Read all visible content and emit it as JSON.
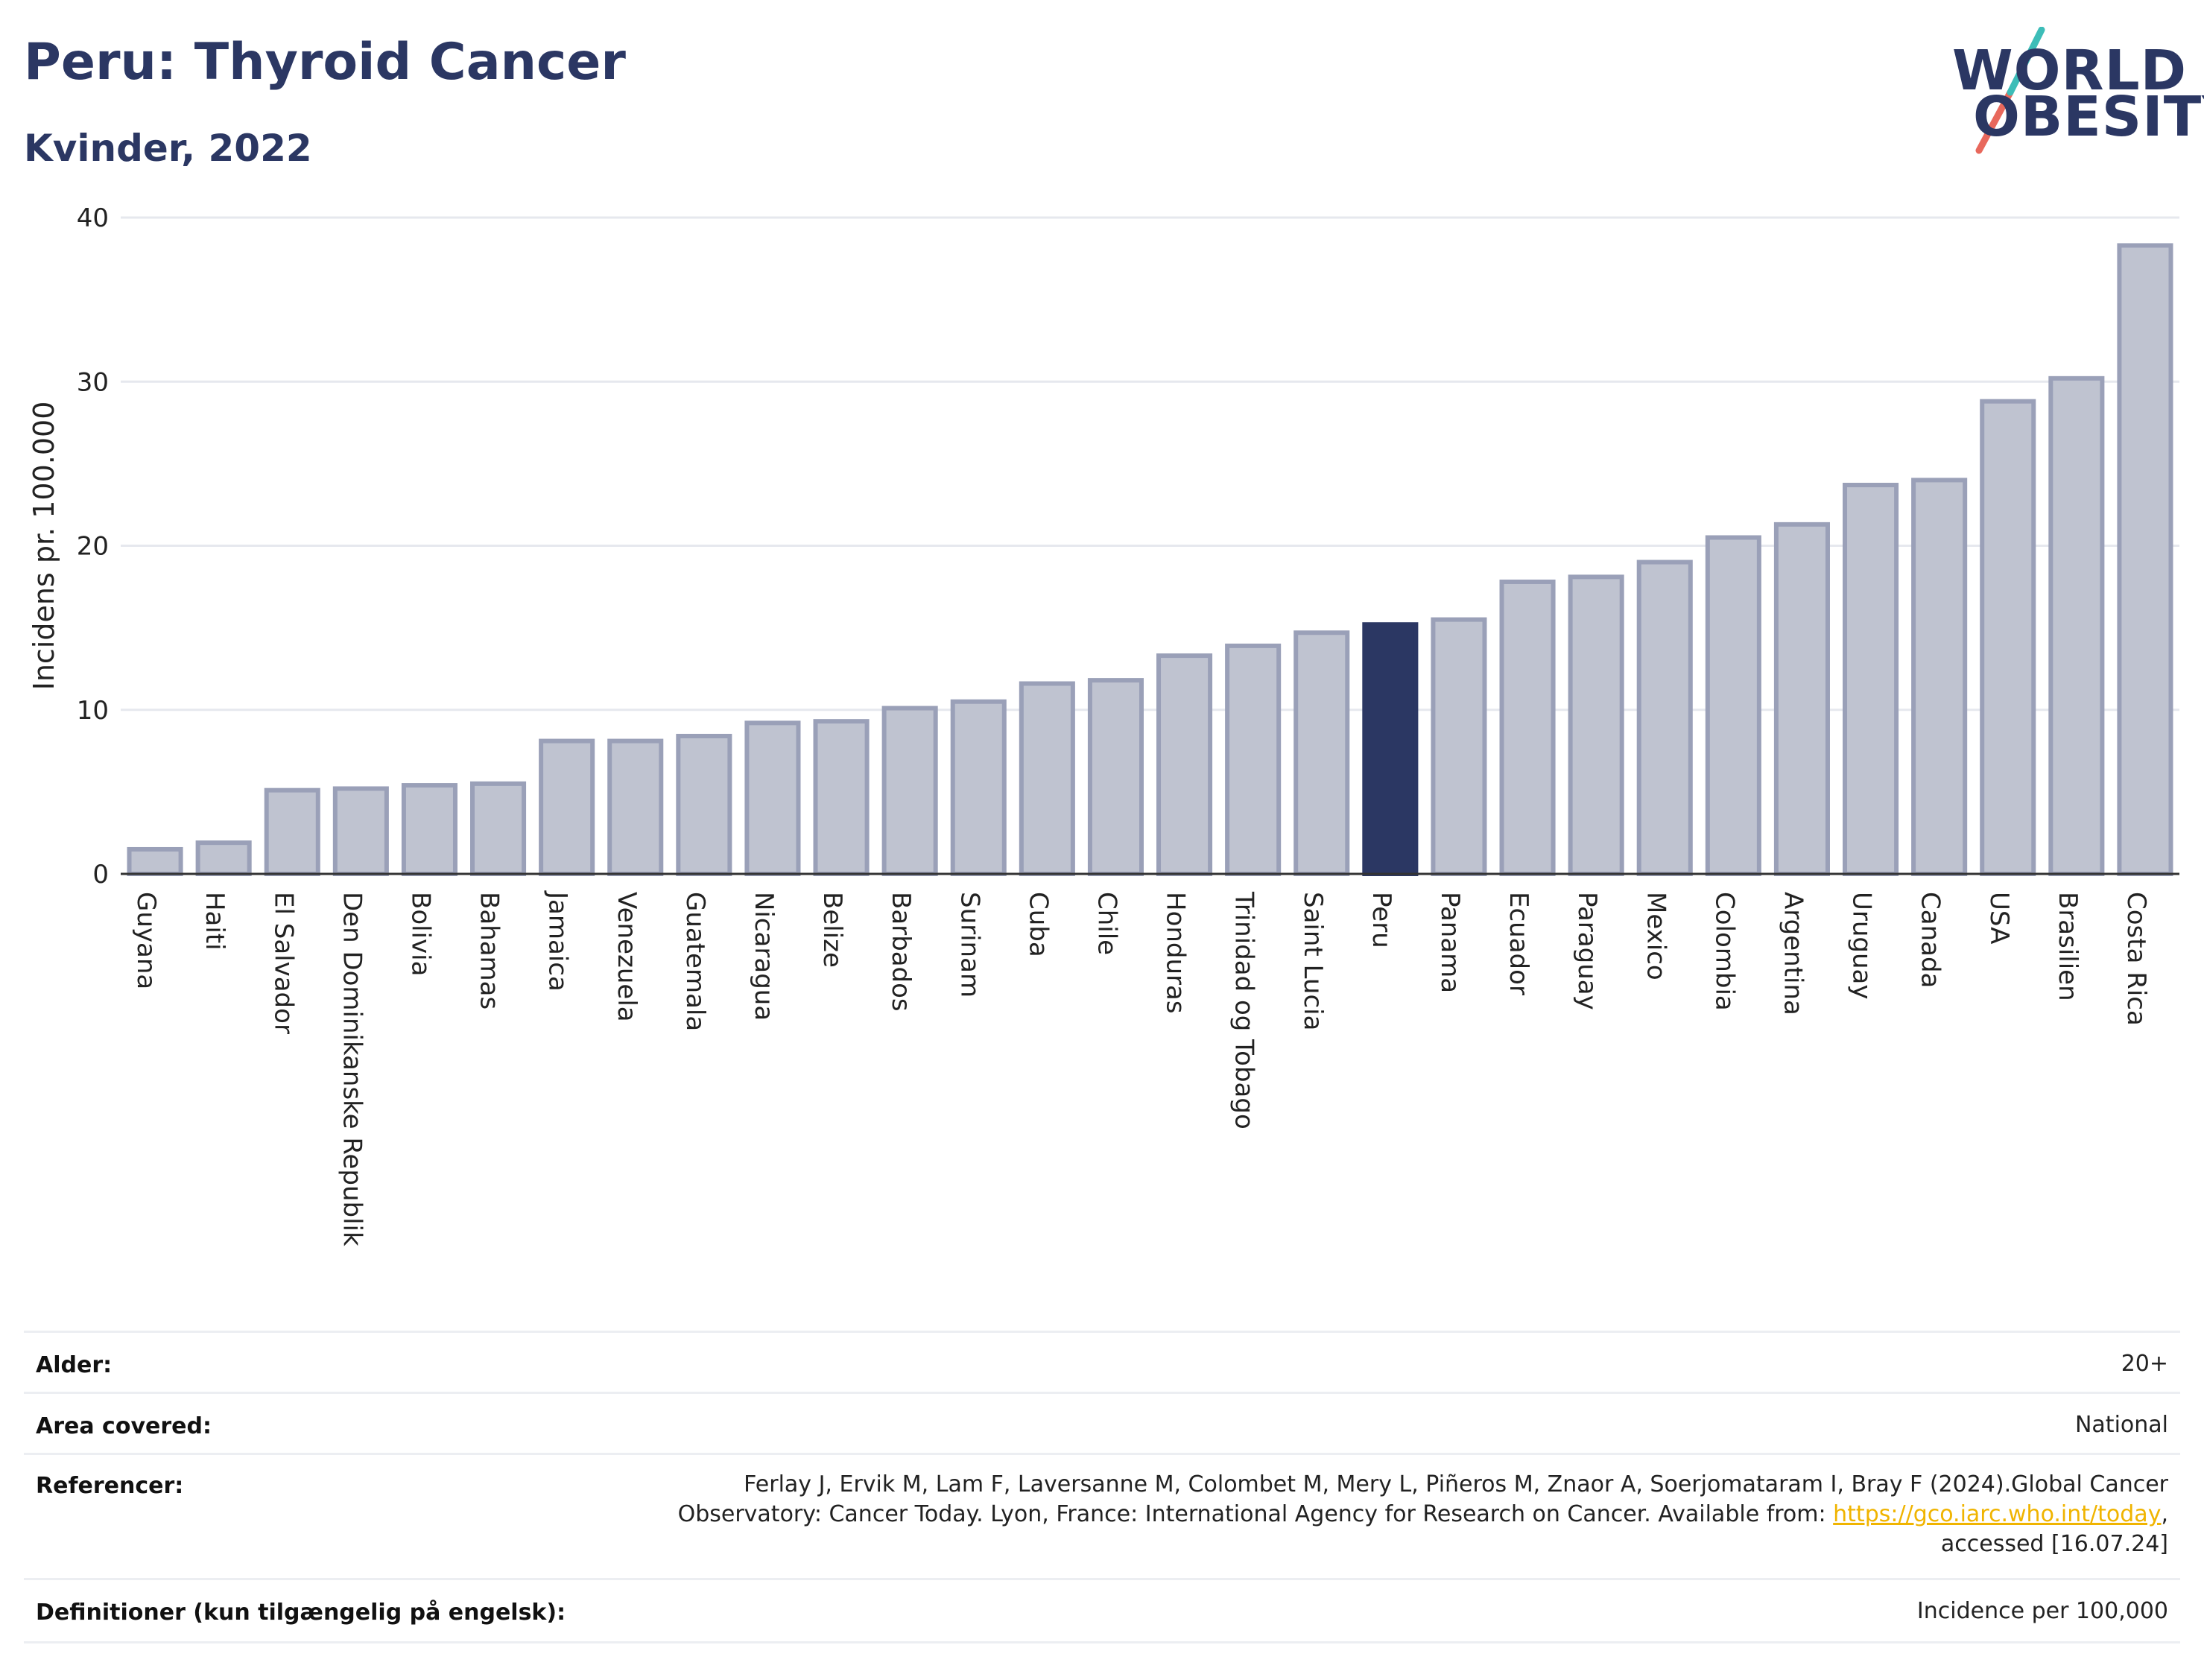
{
  "header": {
    "title": "Peru: Thyroid Cancer",
    "subtitle": "Kvinder, 2022"
  },
  "logo": {
    "line1": "WORLD",
    "line2": "OBESITY",
    "slash_colors": [
      "#3dbdb8",
      "#e8685c"
    ]
  },
  "chart_data": {
    "type": "bar",
    "ylabel": "Incidens pr. 100.000",
    "xlabel": "",
    "ylim": [
      0,
      40
    ],
    "yticks": [
      0,
      10,
      20,
      30,
      40
    ],
    "highlight": "Peru",
    "colors": {
      "bar": "#bfc3d0",
      "bar_edge": "#9aa0b8",
      "highlight": "#2b3763",
      "grid": "#e6e8ee"
    },
    "categories": [
      "Guyana",
      "Haiti",
      "El Salvador",
      "Den Dominikanske Republik",
      "Bolivia",
      "Bahamas",
      "Jamaica",
      "Venezuela",
      "Guatemala",
      "Nicaragua",
      "Belize",
      "Barbados",
      "Surinam",
      "Cuba",
      "Chile",
      "Honduras",
      "Trinidad og Tobago",
      "Saint Lucia",
      "Peru",
      "Panama",
      "Ecuador",
      "Paraguay",
      "Mexico",
      "Colombia",
      "Argentina",
      "Uruguay",
      "Canada",
      "USA",
      "Brasilien",
      "Costa Rica"
    ],
    "values": [
      1.5,
      1.9,
      5.1,
      5.2,
      5.4,
      5.5,
      8.1,
      8.1,
      8.4,
      9.2,
      9.3,
      10.1,
      10.5,
      11.6,
      11.8,
      13.3,
      13.9,
      14.7,
      15.2,
      15.5,
      17.8,
      18.1,
      19.0,
      20.5,
      21.3,
      23.7,
      24.0,
      28.8,
      30.2,
      38.3
    ]
  },
  "info": {
    "age_label": "Alder:",
    "age_value": "20+",
    "area_label": "Area covered:",
    "area_value": "National",
    "ref_label": "Referencer:",
    "ref_line1": "Ferlay J, Ervik M, Lam F, Laversanne M, Colombet M, Mery L, Piñeros M, Znaor A, Soerjomataram I, Bray F (2024).Global Cancer",
    "ref_line2_pre": "Observatory: Cancer Today. Lyon, France: International Agency for Research on Cancer. Available from: ",
    "ref_link": "https://gco.iarc.who.int/today",
    "ref_line2_post": ",",
    "ref_line3": "accessed [16.07.24]",
    "def_label": "Definitioner (kun tilgængelig på engelsk):",
    "def_value": "Incidence per 100,000"
  }
}
